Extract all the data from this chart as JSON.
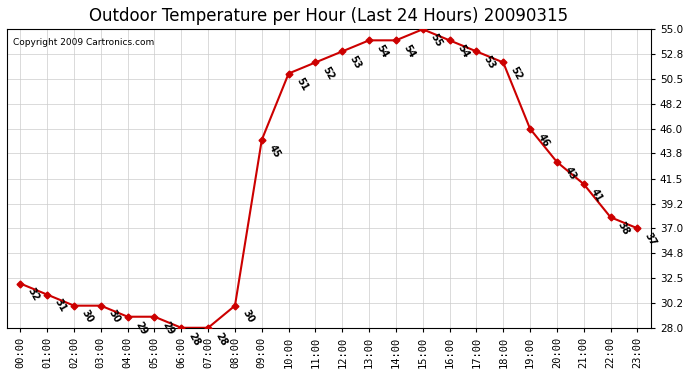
{
  "title": "Outdoor Temperature per Hour (Last 24 Hours) 20090315",
  "copyright": "Copyright 2009 Cartronics.com",
  "hours": [
    "00:00",
    "01:00",
    "02:00",
    "03:00",
    "04:00",
    "05:00",
    "06:00",
    "07:00",
    "08:00",
    "09:00",
    "10:00",
    "11:00",
    "12:00",
    "13:00",
    "14:00",
    "15:00",
    "16:00",
    "17:00",
    "18:00",
    "19:00",
    "20:00",
    "21:00",
    "22:00",
    "23:00"
  ],
  "temps": [
    32,
    31,
    30,
    30,
    29,
    29,
    28,
    28,
    30,
    45,
    51,
    52,
    53,
    54,
    54,
    55,
    54,
    53,
    52,
    46,
    43,
    41,
    38,
    37
  ],
  "ylim": [
    28.0,
    55.0
  ],
  "yticks": [
    28.0,
    30.2,
    32.5,
    34.8,
    37.0,
    39.2,
    41.5,
    43.8,
    46.0,
    48.2,
    50.5,
    52.8,
    55.0
  ],
  "line_color": "#cc0000",
  "marker_color": "#cc0000",
  "grid_color": "#cccccc",
  "bg_color": "#ffffff",
  "title_fontsize": 12,
  "label_fontsize": 7.5,
  "annotation_fontsize": 7
}
